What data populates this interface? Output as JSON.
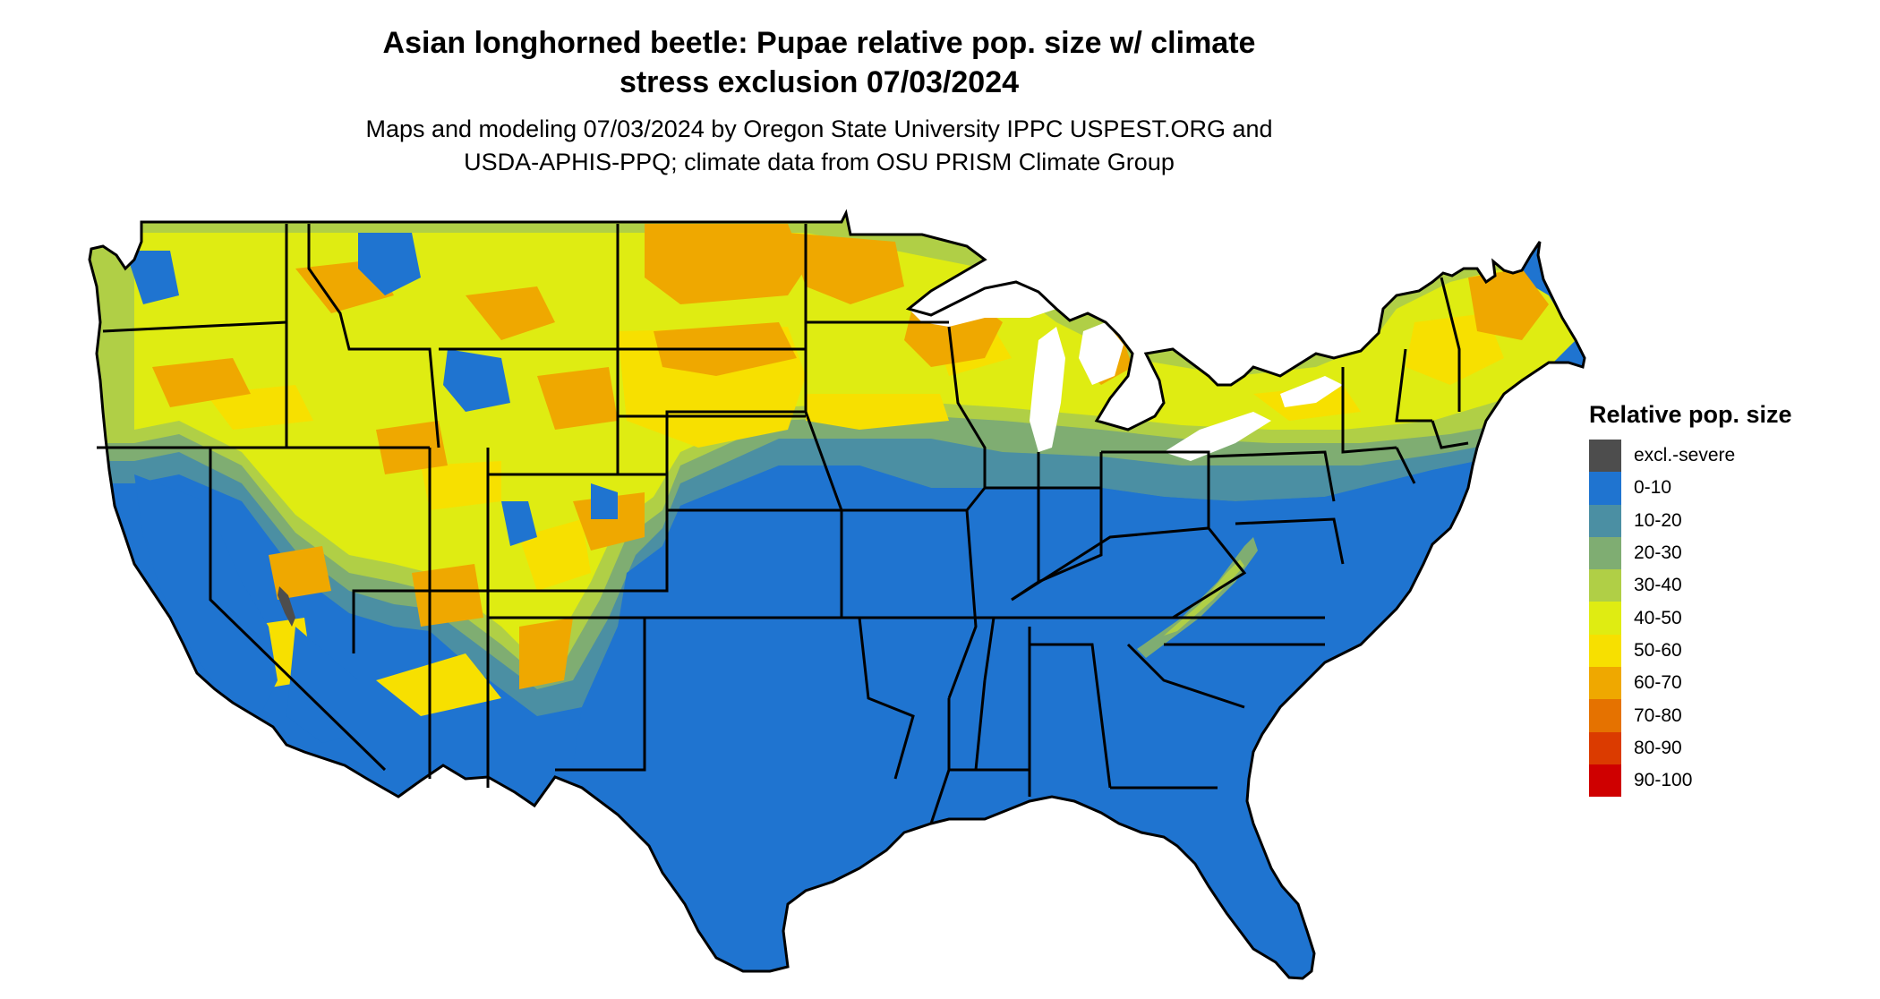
{
  "header": {
    "title_line1": "Asian longhorned beetle: Pupae relative pop. size w/ climate",
    "title_line2": "stress exclusion 07/03/2024",
    "subtitle_line1": "Maps and modeling 07/03/2024 by Oregon State University IPPC USPEST.ORG and",
    "subtitle_line2": "USDA-APHIS-PPQ; climate data from OSU PRISM Climate Group"
  },
  "legend": {
    "title": "Relative pop. size",
    "items": [
      {
        "label": "excl.-severe",
        "color": "#4d4d4d"
      },
      {
        "label": "0-10",
        "color": "#1f74d0"
      },
      {
        "label": "10-20",
        "color": "#4b8fa3"
      },
      {
        "label": "20-30",
        "color": "#7fad72"
      },
      {
        "label": "30-40",
        "color": "#b0cf46"
      },
      {
        "label": "40-50",
        "color": "#dfec12"
      },
      {
        "label": "50-60",
        "color": "#f7e000"
      },
      {
        "label": "60-70",
        "color": "#efa800"
      },
      {
        "label": "70-80",
        "color": "#e57200"
      },
      {
        "label": "80-90",
        "color": "#db3b00"
      },
      {
        "label": "90-100",
        "color": "#cf0000"
      }
    ]
  },
  "map": {
    "region": "Contiguous United States",
    "state_boundaries": true
  }
}
